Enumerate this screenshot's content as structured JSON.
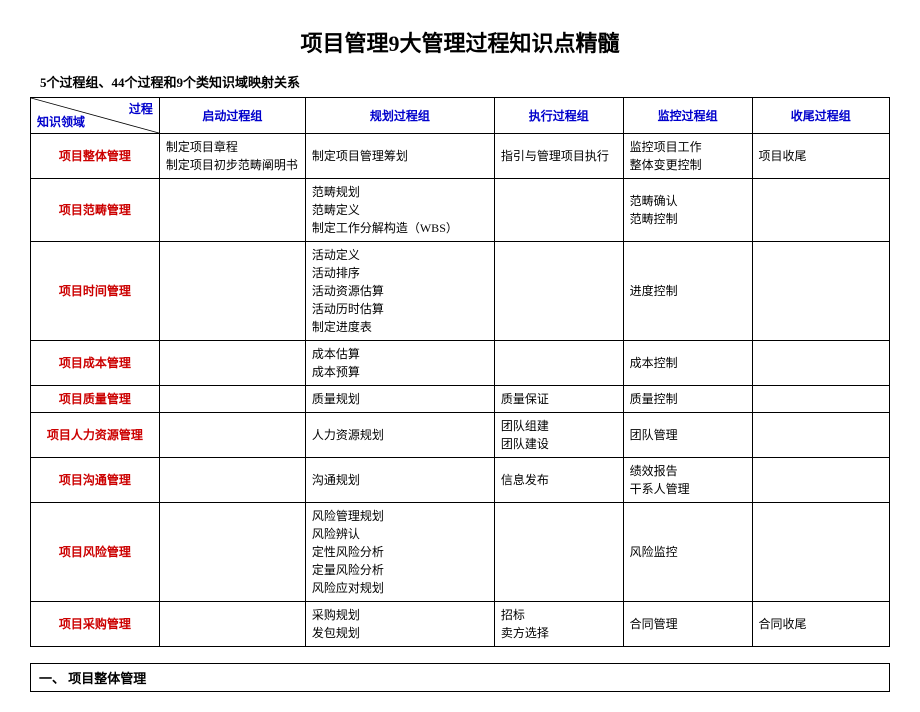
{
  "title": "项目管理9大管理过程知识点精髓",
  "subtitle": "5个过程组、44个过程和9个类知识域映射关系",
  "colors": {
    "header_text": "#0000cc",
    "rowhead_text": "#cc0000",
    "border": "#000000",
    "background": "#ffffff"
  },
  "header": {
    "diag_top": "过程",
    "diag_bottom": "知识领域",
    "cols": [
      "启动过程组",
      "规划过程组",
      "执行过程组",
      "监控过程组",
      "收尾过程组"
    ]
  },
  "col_widths_pct": [
    15,
    17,
    22,
    15,
    15,
    16
  ],
  "rows": [
    {
      "label": "项目整体管理",
      "cells": [
        [
          "制定项目章程",
          "制定项目初步范畴阐明书"
        ],
        [
          "制定项目管理筹划"
        ],
        [
          "指引与管理项目执行"
        ],
        [
          "监控项目工作",
          "整体变更控制"
        ],
        [
          "项目收尾"
        ]
      ]
    },
    {
      "label": "项目范畴管理",
      "cells": [
        [],
        [
          "范畴规划",
          "范畴定义",
          "制定工作分解构造（WBS）"
        ],
        [],
        [
          "范畴确认",
          "范畴控制"
        ],
        []
      ]
    },
    {
      "label": "项目时间管理",
      "cells": [
        [],
        [
          "活动定义",
          "活动排序",
          "活动资源估算",
          "活动历时估算",
          "制定进度表"
        ],
        [],
        [
          "进度控制"
        ],
        []
      ]
    },
    {
      "label": "项目成本管理",
      "cells": [
        [],
        [
          "成本估算",
          "成本预算"
        ],
        [],
        [
          "成本控制"
        ],
        []
      ]
    },
    {
      "label": "项目质量管理",
      "cells": [
        [],
        [
          "质量规划"
        ],
        [
          "质量保证"
        ],
        [
          "质量控制"
        ],
        []
      ]
    },
    {
      "label": "项目人力资源管理",
      "cells": [
        [],
        [
          "人力资源规划"
        ],
        [
          "团队组建",
          "团队建设"
        ],
        [
          "团队管理"
        ],
        []
      ]
    },
    {
      "label": "项目沟通管理",
      "cells": [
        [],
        [
          "沟通规划"
        ],
        [
          "信息发布"
        ],
        [
          "绩效报告",
          "干系人管理"
        ],
        []
      ]
    },
    {
      "label": "项目风险管理",
      "cells": [
        [],
        [
          "风险管理规划",
          "风险辨认",
          "定性风险分析",
          "定量风险分析",
          "风险应对规划"
        ],
        [],
        [
          "风险监控"
        ],
        []
      ]
    },
    {
      "label": "项目采购管理",
      "cells": [
        [],
        [
          "采购规划",
          "发包规划"
        ],
        [
          "招标",
          "卖方选择"
        ],
        [
          "合同管理"
        ],
        [
          "合同收尾"
        ]
      ]
    }
  ],
  "section_heading": "一、 项目整体管理"
}
